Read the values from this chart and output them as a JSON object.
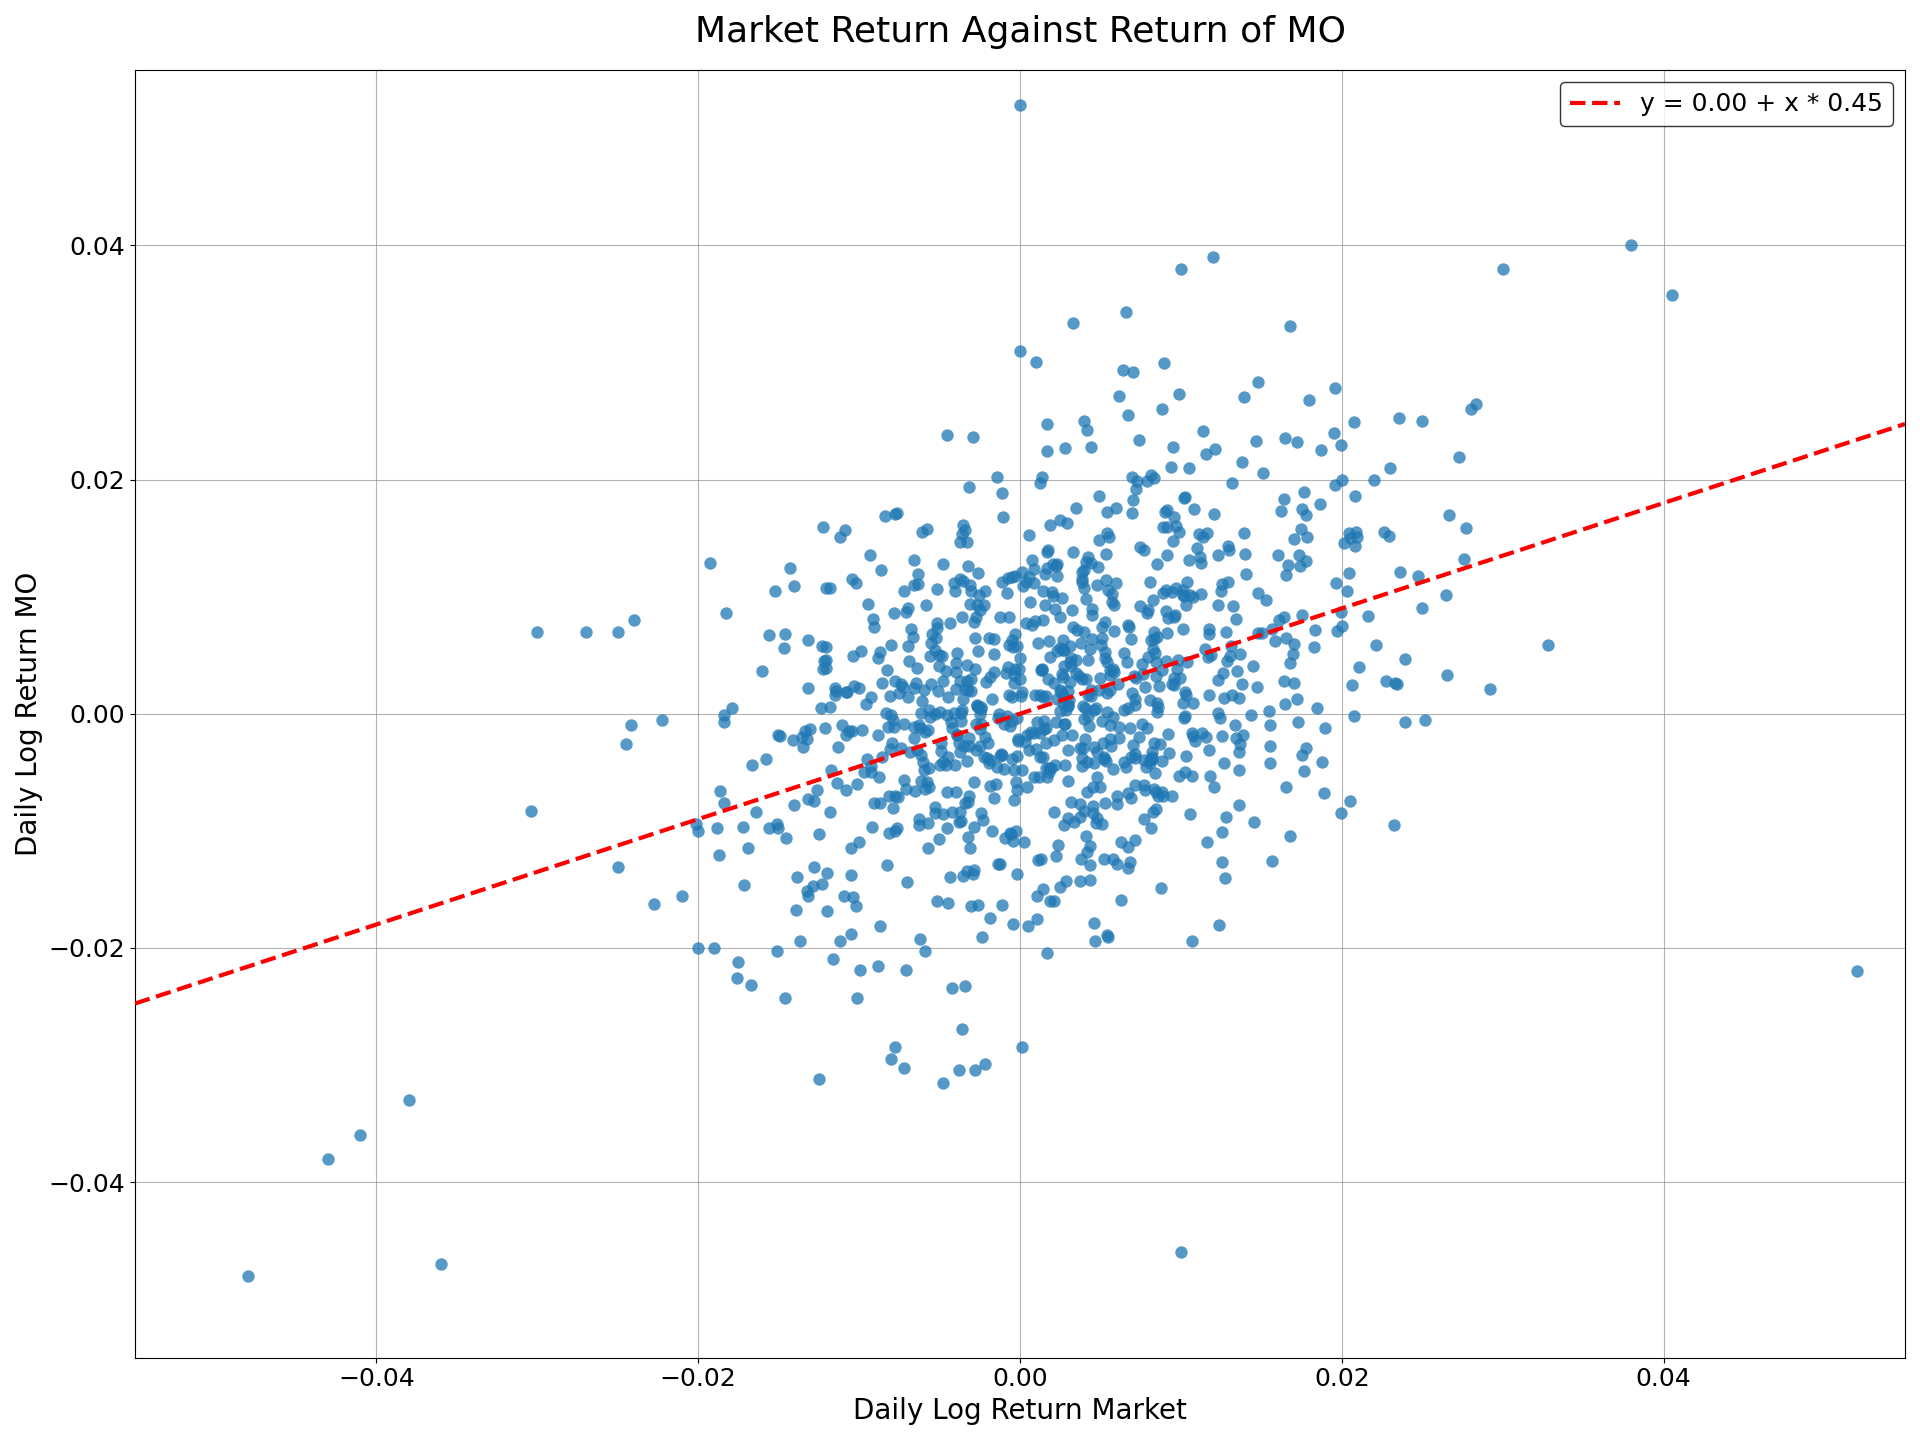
{
  "title": "Market Return Against Return of MO",
  "xlabel": "Daily Log Return Market",
  "ylabel": "Daily Log Return MO",
  "legend_label": "y = 0.00 + x * 0.45",
  "dot_color": "#1f77b4",
  "line_color": "#ff0000",
  "dot_size": 80,
  "dot_alpha": 0.75,
  "intercept": 0.0,
  "slope": 0.45,
  "xlim": [
    -0.055,
    0.055
  ],
  "ylim": [
    -0.055,
    0.055
  ],
  "xticks": [
    -0.04,
    -0.02,
    0.0,
    0.02,
    0.04
  ],
  "yticks": [
    -0.04,
    -0.02,
    0.0,
    0.02,
    0.04
  ],
  "title_fontsize": 26,
  "label_fontsize": 20,
  "tick_fontsize": 18,
  "legend_fontsize": 18,
  "n_points": 1000,
  "random_seed": 42,
  "market_std": 0.01,
  "mo_noise_std": 0.01
}
